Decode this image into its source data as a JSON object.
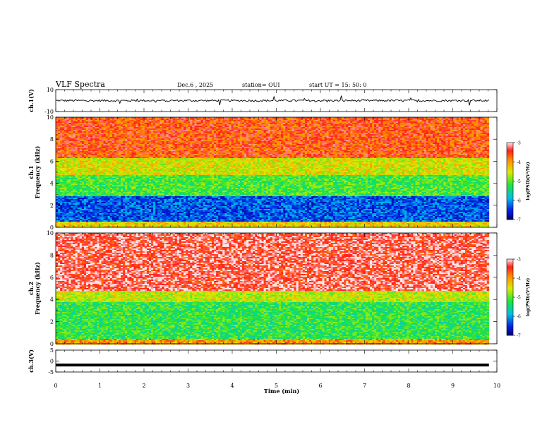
{
  "header": {
    "title": "VLF Spectra",
    "date": "Dec.6  , 2025",
    "station": "station= OUI",
    "start": "start  UT =   15: 50: 0"
  },
  "colors": {
    "red": "#ff1e1e",
    "yellow": "#ffe600",
    "green": "#22ee22",
    "cyan": "#00d0e0",
    "blue": "#1030ff",
    "navy": "#0000a0"
  },
  "chart_data": [
    {
      "type": "line",
      "panel": "ch1-waveform",
      "ylabel": "ch.1(V)",
      "ylim": [
        -10,
        10
      ],
      "yticks": [
        10,
        -10
      ],
      "xlim": [
        0,
        10
      ],
      "series": [
        {
          "values_note": "",
          "level": 0,
          "noise": 0.9
        }
      ]
    },
    {
      "type": "heatmap",
      "panel": "ch1-spectrogram",
      "ylabel": "ch.1\nFrequency  (kHz)",
      "ylim": [
        0,
        10
      ],
      "yticks": [
        0,
        2,
        4,
        6,
        8,
        10
      ],
      "xlim": [
        0,
        10
      ],
      "bands_log_psd": [
        {
          "f": [
            0,
            0.5
          ],
          "level": -4.3
        },
        {
          "f": [
            0.5,
            2.8
          ],
          "level": -6.3
        },
        {
          "f": [
            2.8,
            4.8
          ],
          "level": -5.1
        },
        {
          "f": [
            4.8,
            6.3
          ],
          "level": -4.5
        },
        {
          "f": [
            6.3,
            10
          ],
          "level": -3.6
        }
      ],
      "colorbar": {
        "label": "log(PSD)(V²/Hz)",
        "ticks": [
          -3,
          -4,
          -5,
          -6,
          -7
        ],
        "range": [
          -7,
          -3
        ]
      }
    },
    {
      "type": "heatmap",
      "panel": "ch2-spectrogram",
      "ylabel": "ch.2\nFrequency  (kHz)",
      "ylim": [
        0,
        10
      ],
      "yticks": [
        0,
        2,
        4,
        6,
        8,
        10
      ],
      "xlim": [
        0,
        10
      ],
      "bands_log_psd": [
        {
          "f": [
            0,
            0.4
          ],
          "level": -4.0
        },
        {
          "f": [
            0.4,
            3.8
          ],
          "level": -5.2
        },
        {
          "f": [
            3.8,
            4.8
          ],
          "level": -4.6
        },
        {
          "f": [
            4.8,
            10
          ],
          "level": -3.3
        }
      ],
      "colorbar": {
        "label": "log(PSD)(V²/Hz)",
        "ticks": [
          -3,
          -4,
          -5,
          -6,
          -7
        ],
        "range": [
          -7,
          -3
        ]
      }
    },
    {
      "type": "line",
      "panel": "ch3-waveform",
      "ylabel": "ch.3(V)",
      "ylim": [
        -5,
        5
      ],
      "yticks": [
        5,
        0,
        -5
      ],
      "xlim": [
        0,
        10
      ],
      "series": [
        {
          "level": -1.8
        }
      ]
    }
  ],
  "xaxis": {
    "label": "Time  (min)",
    "ticks": [
      0,
      1,
      2,
      3,
      4,
      5,
      6,
      7,
      8,
      9,
      10
    ]
  }
}
